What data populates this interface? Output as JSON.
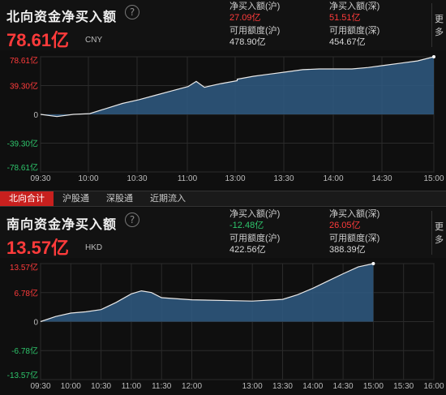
{
  "north": {
    "title": "北向资金净买入额",
    "help_glyph": "?",
    "total": "78.61亿",
    "unit": "CNY",
    "stats": [
      {
        "label": "净买入额(沪)",
        "value": "27.09亿",
        "color": "red"
      },
      {
        "label": "净买入额(深)",
        "value": "51.51亿",
        "color": "red"
      },
      {
        "label": "可用额度(沪)",
        "value": "478.90亿",
        "color": "white"
      },
      {
        "label": "可用额度(深)",
        "value": "454.67亿",
        "color": "white"
      }
    ],
    "more": "更多"
  },
  "tabs": [
    {
      "label": "北向合计",
      "active": true
    },
    {
      "label": "沪股通",
      "active": false
    },
    {
      "label": "深股通",
      "active": false
    },
    {
      "label": "近期流入",
      "active": false
    }
  ],
  "south": {
    "title": "南向资金净买入额",
    "help_glyph": "?",
    "total": "13.57亿",
    "unit": "HKD",
    "stats": [
      {
        "label": "净买入额(沪)",
        "value": "-12.48亿",
        "color": "green"
      },
      {
        "label": "净买入额(深)",
        "value": "26.05亿",
        "color": "red"
      },
      {
        "label": "可用额度(沪)",
        "value": "422.56亿",
        "color": "white"
      },
      {
        "label": "可用额度(深)",
        "value": "388.39亿",
        "color": "white"
      }
    ],
    "more": "更多"
  },
  "colors": {
    "up": "#ff3b3b",
    "down": "#2ec46b",
    "area": "#2f5a82",
    "line": "#e8e8e8"
  },
  "chart_data": [
    {
      "type": "area",
      "y_ticks": [
        "78.61亿",
        "39.30亿",
        "0",
        "-39.30亿",
        "-78.61亿"
      ],
      "y_values": [
        78.61,
        39.3,
        0,
        -39.3,
        -78.61
      ],
      "ylim": [
        -78.61,
        78.61
      ],
      "x_ticks": [
        "09:30",
        "10:00",
        "10:30",
        "11:00",
        "13:00",
        "13:30",
        "14:00",
        "14:30",
        "15:00"
      ],
      "grid": true,
      "series": [
        {
          "x": [
            "09:30",
            "09:40",
            "09:50",
            "10:00",
            "10:10",
            "10:20",
            "10:30",
            "10:40",
            "10:50",
            "11:00",
            "11:05",
            "11:10",
            "11:20",
            "11:30",
            "13:00",
            "13:10",
            "13:20",
            "13:30",
            "13:40",
            "13:50",
            "14:00",
            "14:10",
            "14:20",
            "14:30",
            "14:40",
            "14:50",
            "15:00"
          ],
          "y": [
            0,
            -3,
            0,
            1,
            8,
            15,
            20,
            26,
            32,
            38,
            45,
            37,
            42,
            46,
            48,
            52,
            55,
            58,
            61,
            62,
            62,
            62,
            64,
            67,
            70,
            73,
            78.61
          ]
        }
      ]
    },
    {
      "type": "area",
      "y_ticks": [
        "13.57亿",
        "6.78亿",
        "0",
        "-6.78亿",
        "-13.57亿"
      ],
      "y_values": [
        13.57,
        6.78,
        0,
        -6.78,
        -13.57
      ],
      "ylim": [
        -13.57,
        13.57
      ],
      "x_ticks": [
        "09:30",
        "10:00",
        "10:30",
        "11:00",
        "11:30",
        "12:00",
        "13:00",
        "13:30",
        "14:00",
        "14:30",
        "15:00",
        "15:30",
        "16:00"
      ],
      "grid": true,
      "series": [
        {
          "x": [
            "09:30",
            "09:45",
            "10:00",
            "10:15",
            "10:30",
            "10:45",
            "11:00",
            "11:10",
            "11:20",
            "11:30",
            "12:00",
            "13:00",
            "13:30",
            "13:45",
            "14:00",
            "14:15",
            "14:30",
            "14:45",
            "15:00"
          ],
          "y": [
            0,
            1.2,
            2.0,
            2.3,
            2.8,
            4.5,
            6.5,
            7.2,
            6.8,
            5.6,
            5.1,
            4.8,
            5.2,
            6.3,
            7.8,
            9.5,
            11.2,
            12.8,
            13.57
          ]
        }
      ]
    }
  ]
}
